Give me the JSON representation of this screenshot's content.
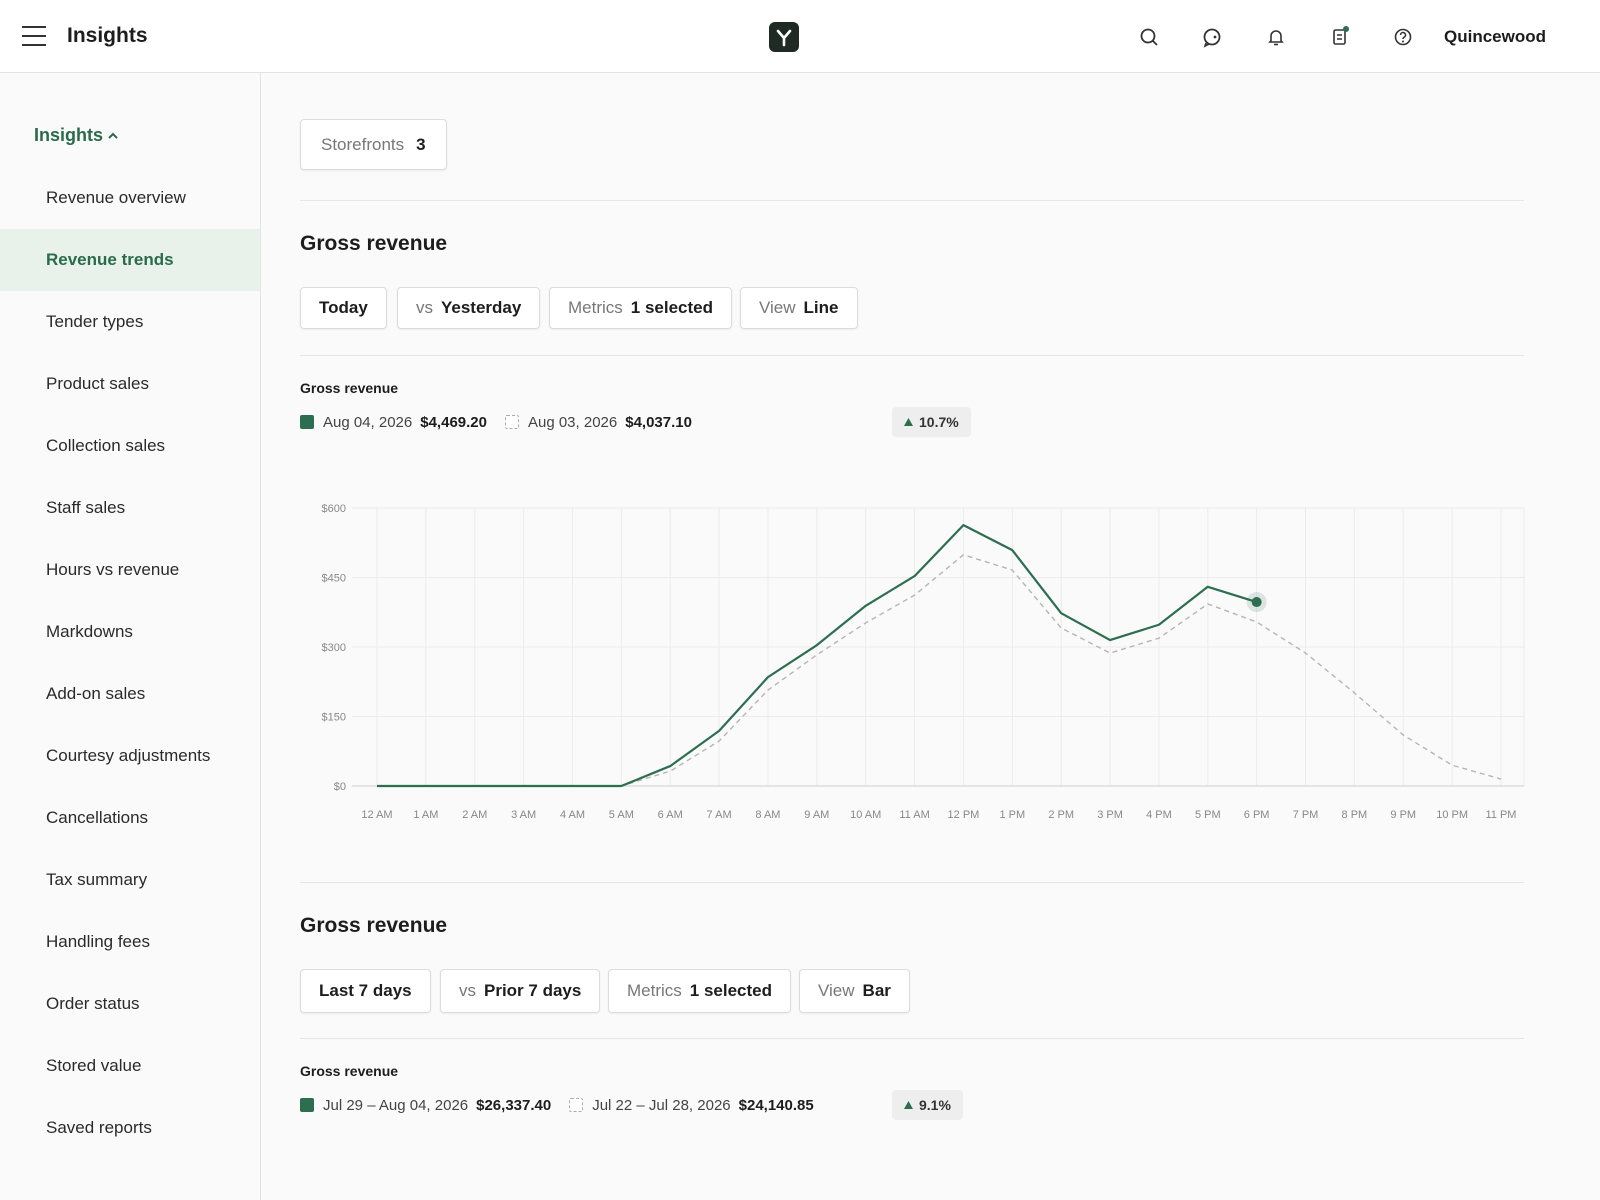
{
  "header": {
    "title": "Insights",
    "user": "Quincewood"
  },
  "sidebar": {
    "section": "Insights",
    "active": 1,
    "items": [
      "Revenue overview",
      "Revenue trends",
      "Tender types",
      "Product sales",
      "Collection sales",
      "Staff sales",
      "Hours vs revenue",
      "Markdowns",
      "Add-on sales",
      "Courtesy adjustments",
      "Cancellations",
      "Tax summary",
      "Handling fees",
      "Order status",
      "Stored value",
      "Saved reports"
    ]
  },
  "storefronts": {
    "label": "Storefronts",
    "count": 3
  },
  "sections": [
    {
      "title": "Gross revenue",
      "filters": [
        {
          "value": "Today"
        },
        {
          "label": "vs",
          "value": "Yesterday"
        },
        {
          "label": "Metrics",
          "value": "1 selected"
        },
        {
          "label": "View",
          "value": "Line"
        }
      ]
    },
    {
      "title": "Gross revenue",
      "filters": [
        {
          "value": "Last 7 days"
        },
        {
          "label": "vs",
          "value": "Prior 7 days"
        },
        {
          "label": "Metrics",
          "value": "1 selected"
        },
        {
          "label": "View",
          "value": "Bar"
        }
      ],
      "summary": {
        "title": "Gross revenue",
        "change": "9.1%",
        "series": [
          {
            "name": "Jul 29 – Aug 04, 2026",
            "total": "$26,337.40",
            "color": "#2d6e50"
          },
          {
            "name": "Jul 22 – Jul 28, 2026",
            "total": "$24,140.85",
            "color": "#b5b5b5",
            "dashed": true
          }
        ]
      }
    }
  ],
  "chart_data": {
    "type": "line",
    "title": "Gross revenue",
    "change": "10.7%",
    "categories": [
      "12 AM",
      "1 AM",
      "2 AM",
      "3 AM",
      "4 AM",
      "5 AM",
      "6 AM",
      "7 AM",
      "8 AM",
      "9 AM",
      "10 AM",
      "11 AM",
      "12 PM",
      "1 PM",
      "2 PM",
      "3 PM",
      "4 PM",
      "5 PM",
      "6 PM",
      "7 PM",
      "8 PM",
      "9 PM",
      "10 PM",
      "11 PM"
    ],
    "series": [
      {
        "name": "Aug 04, 2026",
        "total": "$4,469.20",
        "color": "#2d6e50",
        "values": [
          0,
          0,
          0,
          0,
          0,
          0,
          43,
          119,
          235,
          304,
          389,
          453,
          563,
          509,
          373,
          315,
          348,
          430,
          397,
          null,
          null,
          null,
          null,
          null
        ]
      },
      {
        "name": "Aug 03, 2026",
        "total": "$4,037.10",
        "color": "#b5b5b5",
        "dashed": true,
        "values": [
          0,
          0,
          0,
          0,
          0,
          0,
          32,
          97,
          207,
          283,
          352,
          412,
          499,
          466,
          341,
          287,
          319,
          393,
          354,
          287,
          201,
          110,
          45,
          15
        ]
      }
    ],
    "highlight": 18,
    "ylim": [
      0,
      600
    ],
    "yticks": [
      {
        "value": 0,
        "label": "$0"
      },
      {
        "value": 150,
        "label": "$150"
      },
      {
        "value": 300,
        "label": "$300"
      },
      {
        "value": 450,
        "label": "$450"
      },
      {
        "value": 600,
        "label": "$600"
      }
    ],
    "grid": true
  }
}
